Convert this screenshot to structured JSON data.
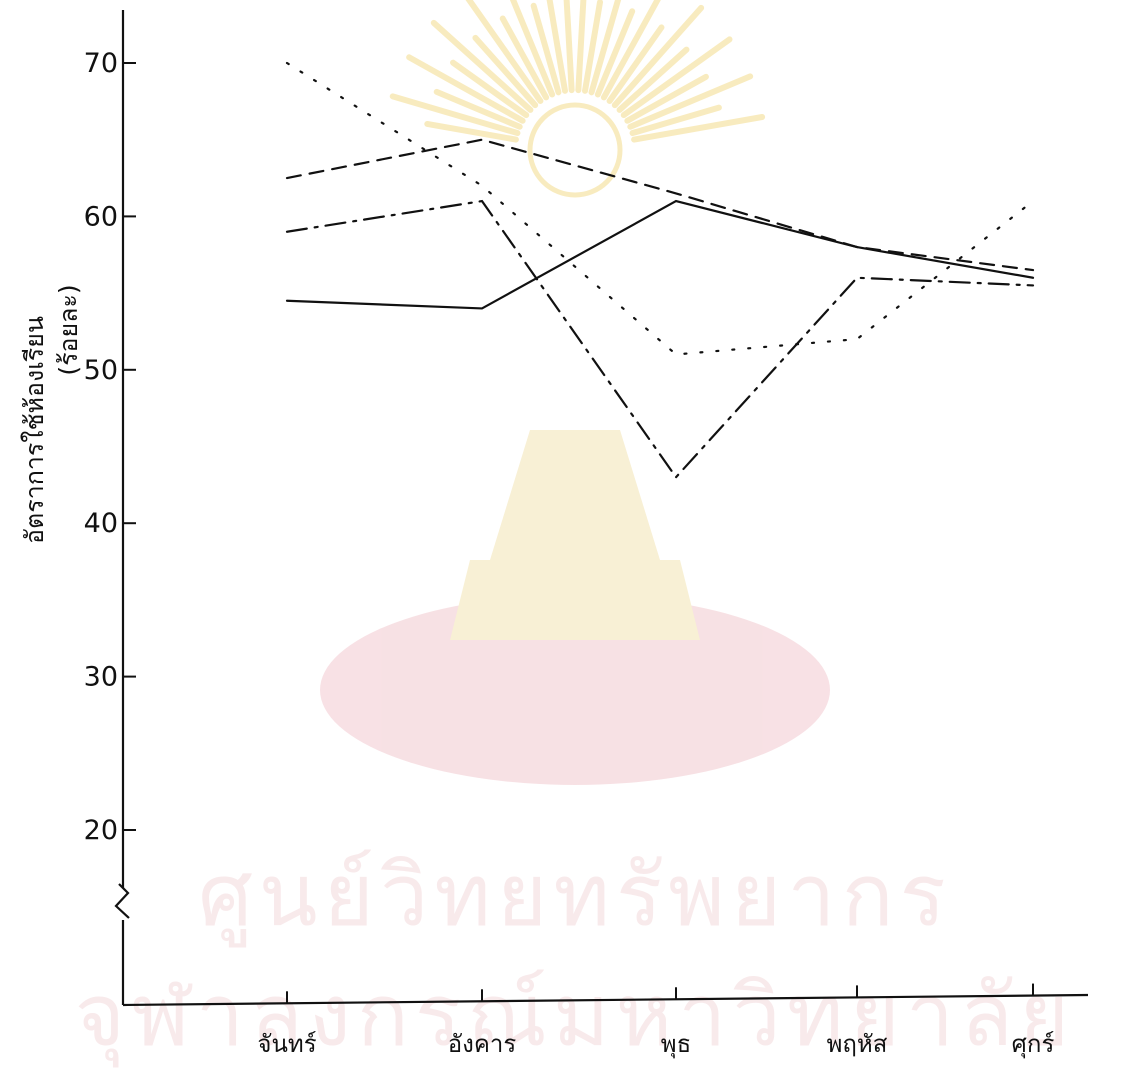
{
  "watermark": {
    "line1": "ศูนย์วิทยทรัพยากร",
    "line2": "จุฬาลงกรณ์มหาวิทยาลัย"
  },
  "chart_data": {
    "type": "line",
    "title": "",
    "xlabel": "",
    "ylabel_line1": "อัตราการใช้ห้องเรียน",
    "ylabel_line2": "(ร้อยละ)",
    "categories": [
      "จันทร์",
      "อังคาร",
      "พุธ",
      "พฤหัส",
      "ศุกร์"
    ],
    "y_ticks": [
      20,
      30,
      40,
      50,
      60,
      70
    ],
    "ylim": [
      12,
      72
    ],
    "axis_break": true,
    "grid": false,
    "series": [
      {
        "style": "solid",
        "values": [
          54.5,
          54,
          61,
          58,
          56
        ]
      },
      {
        "style": "dashed",
        "values": [
          62.5,
          65,
          61.5,
          58,
          56.5
        ]
      },
      {
        "style": "dashdot",
        "values": [
          59,
          61,
          43,
          56,
          55.5
        ]
      },
      {
        "style": "dotted",
        "values": [
          70,
          62,
          51,
          52,
          61
        ]
      }
    ]
  }
}
